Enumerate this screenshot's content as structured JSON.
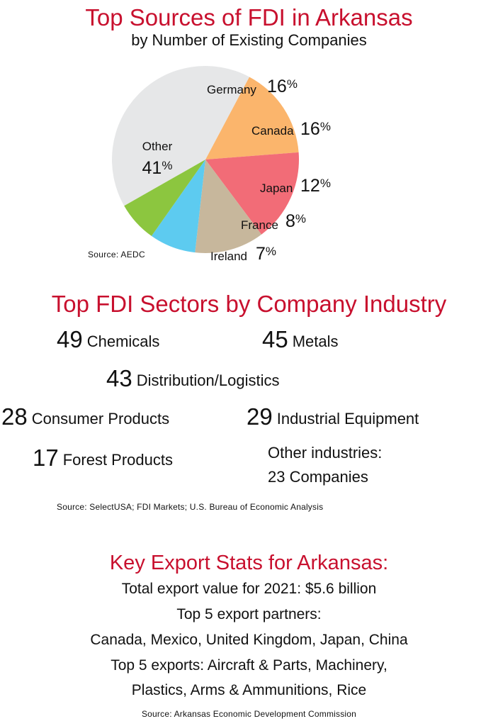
{
  "chart_data": {
    "type": "pie",
    "title": "Top Sources of FDI in Arkansas",
    "subtitle": "by Number of Existing Companies",
    "slices": [
      {
        "label": "Germany",
        "value": 16,
        "pct_text": "16",
        "color": "#fbb56c"
      },
      {
        "label": "Canada",
        "value": 16,
        "pct_text": "16",
        "color": "#f26c77"
      },
      {
        "label": "Japan",
        "value": 12,
        "pct_text": "12",
        "color": "#c7b79c"
      },
      {
        "label": "France",
        "value": 8,
        "pct_text": "8",
        "color": "#5dcbf0"
      },
      {
        "label": "Ireland",
        "value": 7,
        "pct_text": "7",
        "color": "#8cc63f"
      },
      {
        "label": "Other",
        "value": 41,
        "pct_text": "41",
        "color": "#e6e7e8"
      }
    ],
    "percent_symbol": "%",
    "source": "Source: AEDC"
  },
  "sectors": {
    "title": "Top FDI Sectors by Company Industry",
    "items": [
      {
        "value": "49",
        "label": "Chemicals"
      },
      {
        "value": "45",
        "label": "Metals"
      },
      {
        "value": "43",
        "label": "Distribution/Logistics"
      },
      {
        "value": "28",
        "label": "Consumer Products"
      },
      {
        "value": "29",
        "label": "Industrial Equipment"
      },
      {
        "value": "17",
        "label": "Forest Products"
      }
    ],
    "other_label": "Other industries:",
    "other_value": "23 Companies",
    "source": "Source: SelectUSA; FDI Markets; U.S. Bureau of Economic Analysis"
  },
  "exports": {
    "title": "Key Export Stats for Arkansas:",
    "lines": [
      "Total export value for 2021: $5.6 billion",
      "Top 5 export partners:",
      "Canada, Mexico, United Kingdom, Japan, China",
      "Top 5 exports: Aircraft & Parts, Machinery,",
      "Plastics, Arms & Ammunitions, Rice"
    ],
    "source": "Source: Arkansas Economic Development Commission"
  },
  "colors": {
    "accent_red": "#c8102e",
    "text": "#111111"
  }
}
